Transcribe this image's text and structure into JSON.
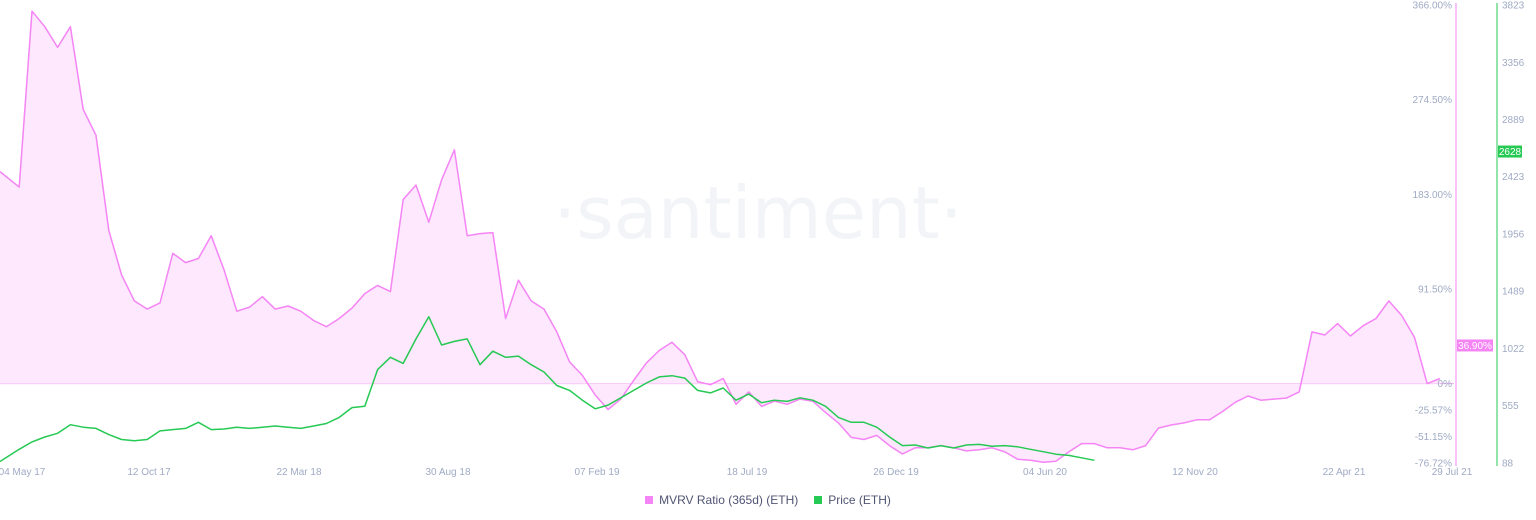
{
  "watermark": "·santiment·",
  "colors": {
    "mvrv": "#f584f5",
    "mvrv_fill": "#fde8fd",
    "price": "#26c953",
    "axis_text": "#9faac4"
  },
  "legend": [
    {
      "label": "MVRV Ratio (365d) (ETH)",
      "color": "#f584f5"
    },
    {
      "label": "Price (ETH)",
      "color": "#26c953"
    }
  ],
  "badges": {
    "mvrv": "36.90%",
    "price": "2628"
  },
  "chart_data": {
    "type": "area",
    "x_ticks": [
      "04 May 17",
      "12 Oct 17",
      "22 Mar 18",
      "30 Aug 18",
      "07 Feb 19",
      "18 Jul 19",
      "26 Dec 19",
      "04 Jun 20",
      "12 Nov 20",
      "22 Apr 21",
      "29 Jul 21"
    ],
    "mvrv_axis": {
      "ticks": [
        "366.00%",
        "274.50%",
        "183.00%",
        "91.50%",
        "0%",
        "-25.57%",
        "-51.15%",
        "-76.72%"
      ],
      "range": [
        -76.72,
        366.0
      ]
    },
    "price_axis": {
      "ticks": [
        "3823",
        "3356",
        "2889",
        "2423",
        "1956",
        "1489",
        "1022",
        "555",
        "88"
      ],
      "range": [
        88,
        3823
      ]
    },
    "x_range": [
      -3,
      222
    ],
    "series": [
      {
        "name": "MVRV Ratio (365d) (ETH)",
        "axis": "left",
        "points": [
          [
            -3,
            205
          ],
          [
            0,
            190
          ],
          [
            2,
            360
          ],
          [
            4,
            345
          ],
          [
            6,
            325
          ],
          [
            8,
            345
          ],
          [
            10,
            265
          ],
          [
            12,
            240
          ],
          [
            14,
            148
          ],
          [
            16,
            105
          ],
          [
            18,
            80
          ],
          [
            20,
            72
          ],
          [
            22,
            78
          ],
          [
            24,
            126
          ],
          [
            26,
            117
          ],
          [
            28,
            121
          ],
          [
            30,
            143
          ],
          [
            32,
            110
          ],
          [
            34,
            70
          ],
          [
            36,
            74
          ],
          [
            38,
            84
          ],
          [
            40,
            72
          ],
          [
            42,
            75
          ],
          [
            44,
            70
          ],
          [
            46,
            61
          ],
          [
            48,
            55
          ],
          [
            50,
            63
          ],
          [
            52,
            73
          ],
          [
            54,
            87
          ],
          [
            56,
            95
          ],
          [
            58,
            89
          ],
          [
            60,
            178
          ],
          [
            62,
            192
          ],
          [
            64,
            156
          ],
          [
            66,
            197
          ],
          [
            68,
            226
          ],
          [
            70,
            143
          ],
          [
            72,
            145
          ],
          [
            74,
            146
          ],
          [
            76,
            63
          ],
          [
            78,
            100
          ],
          [
            80,
            80
          ],
          [
            82,
            72
          ],
          [
            84,
            50
          ],
          [
            86,
            21
          ],
          [
            88,
            8
          ],
          [
            90,
            -11
          ],
          [
            92,
            -25
          ],
          [
            94,
            -15
          ],
          [
            96,
            3
          ],
          [
            98,
            20
          ],
          [
            100,
            32
          ],
          [
            102,
            40
          ],
          [
            104,
            28
          ],
          [
            106,
            2
          ],
          [
            108,
            -1
          ],
          [
            110,
            5
          ],
          [
            112,
            -20
          ],
          [
            114,
            -8
          ],
          [
            116,
            -22
          ],
          [
            118,
            -17
          ],
          [
            120,
            -20
          ],
          [
            122,
            -15
          ],
          [
            124,
            -17
          ],
          [
            126,
            -28
          ],
          [
            128,
            -38
          ],
          [
            130,
            -52
          ],
          [
            132,
            -54
          ],
          [
            134,
            -50
          ],
          [
            136,
            -60
          ],
          [
            138,
            -68
          ],
          [
            140,
            -62
          ],
          [
            142,
            -62
          ],
          [
            144,
            -60
          ],
          [
            146,
            -62
          ],
          [
            148,
            -65
          ],
          [
            150,
            -64
          ],
          [
            152,
            -62
          ],
          [
            154,
            -66
          ],
          [
            156,
            -73
          ],
          [
            158,
            -74
          ],
          [
            160,
            -76
          ],
          [
            162,
            -75
          ],
          [
            164,
            -66
          ],
          [
            166,
            -58
          ],
          [
            168,
            -58
          ],
          [
            170,
            -62
          ],
          [
            172,
            -62
          ],
          [
            174,
            -64
          ],
          [
            176,
            -60
          ],
          [
            178,
            -43
          ],
          [
            180,
            -40
          ],
          [
            182,
            -38
          ],
          [
            184,
            -35
          ],
          [
            186,
            -35
          ],
          [
            188,
            -27
          ],
          [
            190,
            -18
          ],
          [
            192,
            -12
          ],
          [
            194,
            -16
          ],
          [
            196,
            -15
          ],
          [
            198,
            -14
          ],
          [
            200,
            -8
          ],
          [
            202,
            50
          ],
          [
            204,
            47
          ],
          [
            206,
            58
          ],
          [
            208,
            46
          ],
          [
            210,
            56
          ],
          [
            212,
            63
          ],
          [
            214,
            80
          ],
          [
            216,
            66
          ],
          [
            218,
            45
          ],
          [
            220,
            0
          ],
          [
            222,
            5
          ]
        ]
      },
      {
        "name": "Price (ETH)",
        "axis": "right",
        "points": [
          [
            -3,
            100
          ],
          [
            0,
            200
          ],
          [
            2,
            260
          ],
          [
            4,
            300
          ],
          [
            6,
            330
          ],
          [
            8,
            400
          ],
          [
            10,
            380
          ],
          [
            12,
            370
          ],
          [
            14,
            320
          ],
          [
            16,
            280
          ],
          [
            18,
            270
          ],
          [
            20,
            280
          ],
          [
            22,
            350
          ],
          [
            24,
            360
          ],
          [
            26,
            370
          ],
          [
            28,
            420
          ],
          [
            30,
            360
          ],
          [
            32,
            365
          ],
          [
            34,
            380
          ],
          [
            36,
            370
          ],
          [
            38,
            380
          ],
          [
            40,
            390
          ],
          [
            42,
            380
          ],
          [
            44,
            370
          ],
          [
            46,
            390
          ],
          [
            48,
            410
          ],
          [
            50,
            460
          ],
          [
            52,
            540
          ],
          [
            54,
            550
          ],
          [
            56,
            850
          ],
          [
            58,
            950
          ],
          [
            60,
            900
          ],
          [
            62,
            1100
          ],
          [
            64,
            1280
          ],
          [
            66,
            1050
          ],
          [
            68,
            1080
          ],
          [
            70,
            1100
          ],
          [
            72,
            890
          ],
          [
            74,
            1000
          ],
          [
            76,
            950
          ],
          [
            78,
            960
          ],
          [
            80,
            890
          ],
          [
            82,
            830
          ],
          [
            84,
            720
          ],
          [
            86,
            680
          ],
          [
            88,
            600
          ],
          [
            90,
            530
          ],
          [
            92,
            560
          ],
          [
            94,
            620
          ],
          [
            96,
            680
          ],
          [
            98,
            740
          ],
          [
            100,
            790
          ],
          [
            102,
            800
          ],
          [
            104,
            780
          ],
          [
            106,
            680
          ],
          [
            108,
            660
          ],
          [
            110,
            700
          ],
          [
            112,
            600
          ],
          [
            114,
            650
          ],
          [
            116,
            580
          ],
          [
            118,
            600
          ],
          [
            120,
            590
          ],
          [
            122,
            620
          ],
          [
            124,
            600
          ],
          [
            126,
            550
          ],
          [
            128,
            460
          ],
          [
            130,
            420
          ],
          [
            132,
            420
          ],
          [
            134,
            380
          ],
          [
            136,
            300
          ],
          [
            138,
            230
          ],
          [
            140,
            235
          ],
          [
            142,
            210
          ],
          [
            144,
            230
          ],
          [
            146,
            210
          ],
          [
            148,
            235
          ],
          [
            150,
            240
          ],
          [
            152,
            225
          ],
          [
            154,
            230
          ],
          [
            156,
            220
          ],
          [
            158,
            200
          ],
          [
            160,
            180
          ],
          [
            162,
            160
          ],
          [
            164,
            150
          ],
          [
            166,
            130
          ],
          [
            168,
            110
          ]
        ]
      }
    ]
  }
}
